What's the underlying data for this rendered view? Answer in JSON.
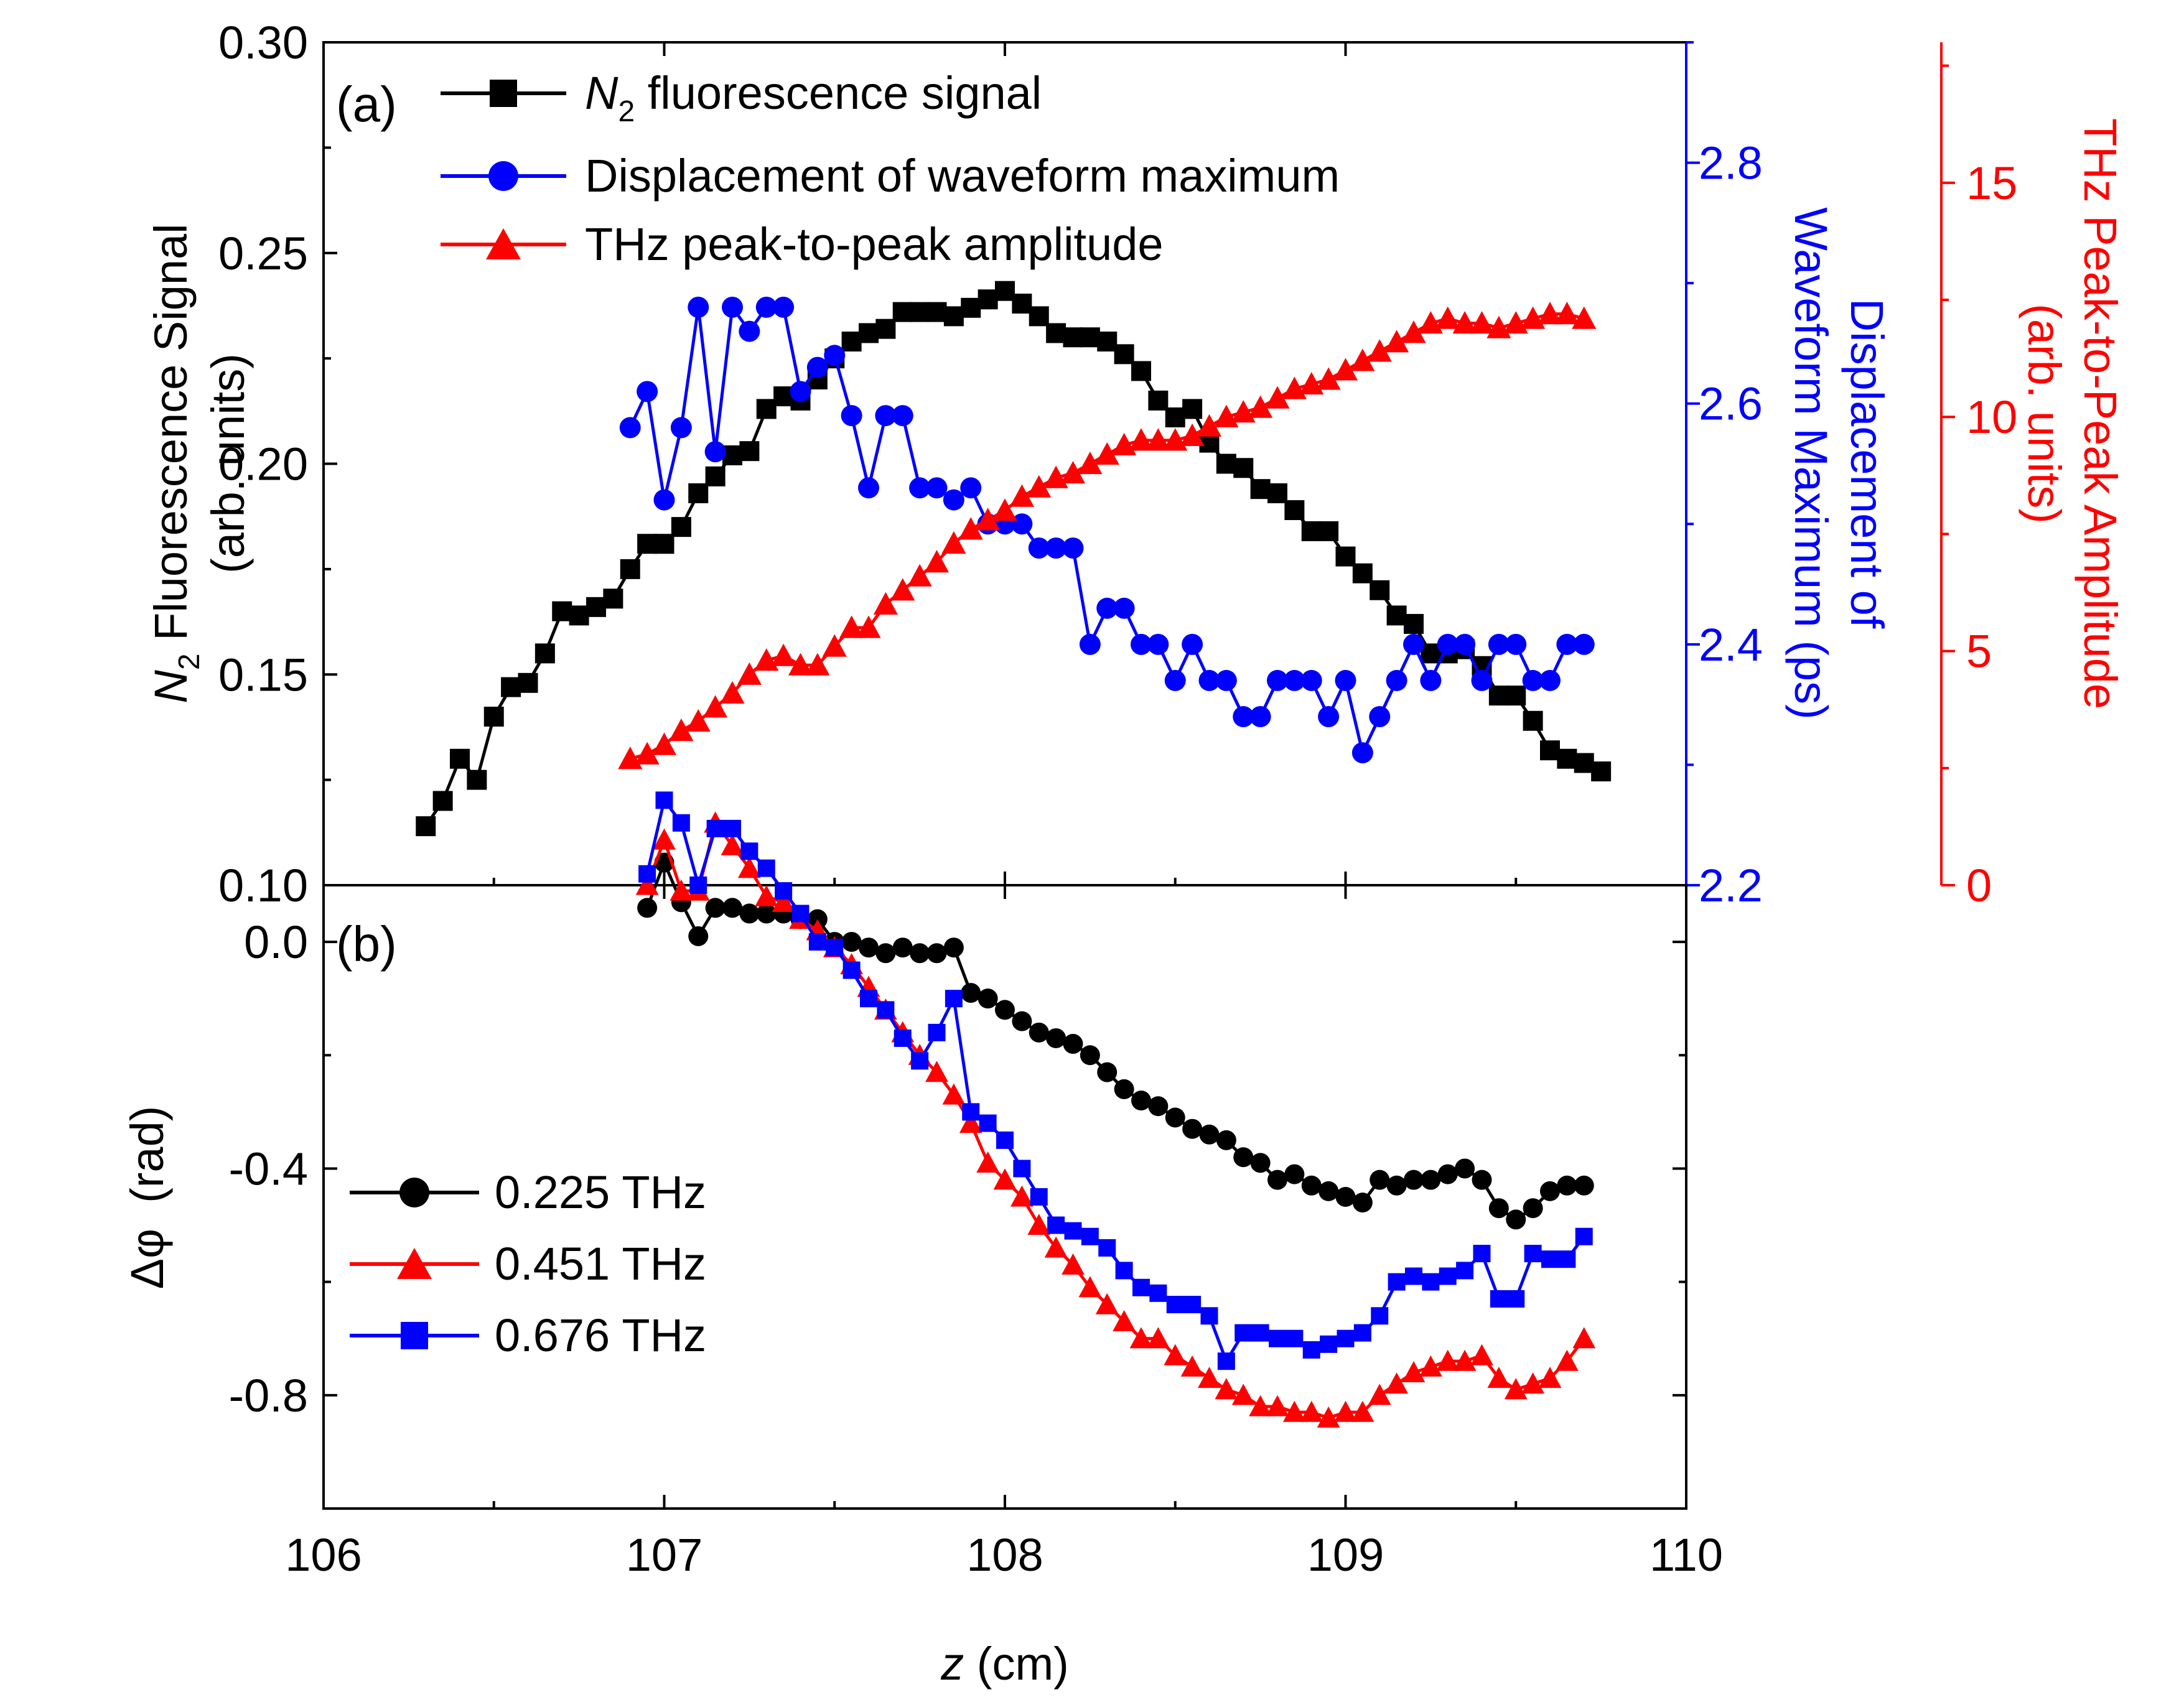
{
  "colors": {
    "black": "#000000",
    "blue": "#0000ff",
    "red": "#ff0000"
  },
  "chart_data": [
    {
      "type": "line",
      "panel_label": "(a)",
      "xlim": [
        106,
        110
      ],
      "ylabel_left": {
        "prefix": "N",
        "subscript": "2",
        "text": " Fluorescence Signal",
        "units": "(arb. units)"
      },
      "ylabel_mid": {
        "line1": "Displacement of",
        "line2": "Waveform Maximum (ps)"
      },
      "ylabel_right": {
        "line1": "THz Peak-to-Peak Amplitude",
        "line2": "(arb. units)"
      },
      "axes": {
        "left": {
          "ylim": [
            0.1,
            0.3
          ],
          "ticks": [
            0.1,
            0.15,
            0.2,
            0.25,
            0.3
          ],
          "labels": [
            "0.10",
            "0.15",
            "0.20",
            "0.25",
            "0.30"
          ],
          "color": "#000000"
        },
        "mid": {
          "ylim": [
            2.2,
            2.9
          ],
          "ticks": [
            2.2,
            2.4,
            2.6,
            2.8
          ],
          "labels": [
            "2.2",
            "2.4",
            "2.6",
            "2.8"
          ],
          "color": "#0000ff"
        },
        "right": {
          "ylim": [
            0,
            18
          ],
          "ticks": [
            0,
            5,
            10,
            15
          ],
          "labels": [
            "0",
            "5",
            "10",
            "15"
          ],
          "color": "#ff0000"
        }
      },
      "legend": [
        {
          "label_prefix": "N",
          "label_sub": "2",
          "label_rest": " fluorescence signal",
          "color": "#000000",
          "marker": "square"
        },
        {
          "label": "Displacement of waveform maximum",
          "color": "#0000ff",
          "marker": "circle"
        },
        {
          "label": "THz peak-to-peak amplitude",
          "color": "#ff0000",
          "marker": "triangle"
        }
      ],
      "series": [
        {
          "name": "N2 fluorescence signal",
          "axis": "left",
          "color": "#000000",
          "marker": "square",
          "x": [
            106.3,
            106.35,
            106.4,
            106.45,
            106.5,
            106.55,
            106.6,
            106.65,
            106.7,
            106.75,
            106.8,
            106.85,
            106.9,
            106.95,
            107.0,
            107.05,
            107.1,
            107.15,
            107.2,
            107.25,
            107.3,
            107.35,
            107.4,
            107.45,
            107.5,
            107.55,
            107.6,
            107.65,
            107.7,
            107.75,
            107.8,
            107.85,
            107.9,
            107.95,
            108.0,
            108.05,
            108.1,
            108.15,
            108.2,
            108.25,
            108.3,
            108.35,
            108.4,
            108.45,
            108.5,
            108.55,
            108.6,
            108.65,
            108.7,
            108.75,
            108.8,
            108.85,
            108.9,
            108.95,
            109.0,
            109.05,
            109.1,
            109.15,
            109.2,
            109.25,
            109.3,
            109.35,
            109.4,
            109.45,
            109.5,
            109.55,
            109.6,
            109.65,
            109.7,
            109.75
          ],
          "y": [
            0.114,
            0.12,
            0.13,
            0.125,
            0.14,
            0.147,
            0.148,
            0.155,
            0.165,
            0.164,
            0.166,
            0.168,
            0.175,
            0.181,
            0.181,
            0.185,
            0.193,
            0.197,
            0.202,
            0.203,
            0.213,
            0.216,
            0.215,
            0.22,
            0.225,
            0.229,
            0.231,
            0.232,
            0.236,
            0.236,
            0.236,
            0.235,
            0.237,
            0.239,
            0.241,
            0.238,
            0.235,
            0.231,
            0.23,
            0.23,
            0.229,
            0.226,
            0.222,
            0.215,
            0.211,
            0.213,
            0.205,
            0.2,
            0.199,
            0.194,
            0.193,
            0.189,
            0.184,
            0.184,
            0.178,
            0.174,
            0.17,
            0.164,
            0.162,
            0.155,
            0.155,
            0.156,
            0.152,
            0.145,
            0.145,
            0.139,
            0.132,
            0.13,
            0.129,
            0.127
          ]
        },
        {
          "name": "Displacement of waveform maximum",
          "axis": "mid",
          "color": "#0000ff",
          "marker": "circle",
          "x": [
            106.9,
            106.95,
            107.0,
            107.05,
            107.1,
            107.15,
            107.2,
            107.25,
            107.3,
            107.35,
            107.4,
            107.45,
            107.5,
            107.55,
            107.6,
            107.65,
            107.7,
            107.75,
            107.8,
            107.85,
            107.9,
            107.95,
            108.0,
            108.05,
            108.1,
            108.15,
            108.2,
            108.25,
            108.3,
            108.35,
            108.4,
            108.45,
            108.5,
            108.55,
            108.6,
            108.65,
            108.7,
            108.75,
            108.8,
            108.85,
            108.9,
            108.95,
            109.0,
            109.05,
            109.1,
            109.15,
            109.2,
            109.25,
            109.3,
            109.35,
            109.4,
            109.45,
            109.5,
            109.55,
            109.6,
            109.65,
            109.7
          ],
          "y": [
            2.58,
            2.61,
            2.52,
            2.58,
            2.68,
            2.56,
            2.68,
            2.66,
            2.68,
            2.68,
            2.61,
            2.63,
            2.64,
            2.59,
            2.53,
            2.59,
            2.59,
            2.53,
            2.53,
            2.52,
            2.53,
            2.5,
            2.5,
            2.5,
            2.48,
            2.48,
            2.48,
            2.4,
            2.43,
            2.43,
            2.4,
            2.4,
            2.37,
            2.4,
            2.37,
            2.37,
            2.34,
            2.34,
            2.37,
            2.37,
            2.37,
            2.34,
            2.37,
            2.31,
            2.34,
            2.37,
            2.4,
            2.37,
            2.4,
            2.4,
            2.37,
            2.4,
            2.4,
            2.37,
            2.37,
            2.4,
            2.4
          ]
        },
        {
          "name": "THz peak-to-peak amplitude",
          "axis": "right",
          "color": "#ff0000",
          "marker": "triangle",
          "x": [
            106.9,
            106.95,
            107.0,
            107.05,
            107.1,
            107.15,
            107.2,
            107.25,
            107.3,
            107.35,
            107.4,
            107.45,
            107.5,
            107.55,
            107.6,
            107.65,
            107.7,
            107.75,
            107.8,
            107.85,
            107.9,
            107.95,
            108.0,
            108.05,
            108.1,
            108.15,
            108.2,
            108.25,
            108.3,
            108.35,
            108.4,
            108.45,
            108.5,
            108.55,
            108.6,
            108.65,
            108.7,
            108.75,
            108.8,
            108.85,
            108.9,
            108.95,
            109.0,
            109.05,
            109.1,
            109.15,
            109.2,
            109.25,
            109.3,
            109.35,
            109.4,
            109.45,
            109.5,
            109.55,
            109.6,
            109.65,
            109.7
          ],
          "y": [
            2.7,
            2.8,
            3.0,
            3.3,
            3.5,
            3.8,
            4.1,
            4.5,
            4.8,
            4.9,
            4.7,
            4.7,
            5.1,
            5.5,
            5.5,
            6.0,
            6.3,
            6.6,
            6.9,
            7.3,
            7.6,
            7.8,
            8.0,
            8.3,
            8.5,
            8.7,
            8.8,
            9.0,
            9.2,
            9.4,
            9.5,
            9.5,
            9.5,
            9.6,
            9.8,
            10.0,
            10.1,
            10.2,
            10.4,
            10.6,
            10.7,
            10.8,
            11.0,
            11.2,
            11.4,
            11.6,
            11.8,
            12.0,
            12.1,
            12.0,
            12.0,
            11.9,
            12.0,
            12.1,
            12.2,
            12.2,
            12.1
          ]
        }
      ]
    },
    {
      "type": "line",
      "panel_label": "(b)",
      "xlabel": {
        "var": "z",
        "units": " (cm)"
      },
      "ylabel": "Δφ  (rad)",
      "xlim": [
        106,
        110
      ],
      "ylim": [
        -1.0,
        0.1
      ],
      "xticks": [
        106,
        107,
        108,
        109,
        110
      ],
      "xtick_labels": [
        "106",
        "107",
        "108",
        "109",
        "110"
      ],
      "yticks": [
        0.0,
        -0.4,
        -0.8
      ],
      "ytick_labels": [
        "0.0",
        "-0.4",
        "-0.8"
      ],
      "legend": [
        {
          "label": "0.225 THz",
          "color": "#000000",
          "marker": "circle"
        },
        {
          "label": "0.451 THz",
          "color": "#ff0000",
          "marker": "triangle"
        },
        {
          "label": "0.676 THz",
          "color": "#0000ff",
          "marker": "square"
        }
      ],
      "series": [
        {
          "name": "0.225 THz",
          "color": "#000000",
          "marker": "circle",
          "x": [
            106.95,
            107.0,
            107.05,
            107.1,
            107.15,
            107.2,
            107.25,
            107.3,
            107.35,
            107.4,
            107.45,
            107.5,
            107.55,
            107.6,
            107.65,
            107.7,
            107.75,
            107.8,
            107.85,
            107.9,
            107.95,
            108.0,
            108.05,
            108.1,
            108.15,
            108.2,
            108.25,
            108.3,
            108.35,
            108.4,
            108.45,
            108.5,
            108.55,
            108.6,
            108.65,
            108.7,
            108.75,
            108.8,
            108.85,
            108.9,
            108.95,
            109.0,
            109.05,
            109.1,
            109.15,
            109.2,
            109.25,
            109.3,
            109.35,
            109.4,
            109.45,
            109.5,
            109.55,
            109.6,
            109.65,
            109.7
          ],
          "y": [
            0.06,
            0.14,
            0.07,
            0.01,
            0.06,
            0.06,
            0.05,
            0.05,
            0.05,
            0.04,
            0.04,
            0.0,
            0.0,
            -0.01,
            -0.02,
            -0.01,
            -0.02,
            -0.02,
            -0.01,
            -0.09,
            -0.1,
            -0.12,
            -0.14,
            -0.16,
            -0.17,
            -0.18,
            -0.2,
            -0.23,
            -0.26,
            -0.28,
            -0.29,
            -0.31,
            -0.33,
            -0.34,
            -0.35,
            -0.38,
            -0.39,
            -0.42,
            -0.41,
            -0.43,
            -0.44,
            -0.45,
            -0.46,
            -0.42,
            -0.43,
            -0.42,
            -0.42,
            -0.41,
            -0.4,
            -0.42,
            -0.47,
            -0.49,
            -0.47,
            -0.44,
            -0.43,
            -0.43
          ]
        },
        {
          "name": "0.451 THz",
          "color": "#ff0000",
          "marker": "triangle",
          "x": [
            106.95,
            107.0,
            107.05,
            107.1,
            107.15,
            107.2,
            107.25,
            107.3,
            107.35,
            107.4,
            107.45,
            107.5,
            107.55,
            107.6,
            107.65,
            107.7,
            107.75,
            107.8,
            107.85,
            107.9,
            107.95,
            108.0,
            108.05,
            108.1,
            108.15,
            108.2,
            108.25,
            108.3,
            108.35,
            108.4,
            108.45,
            108.5,
            108.55,
            108.6,
            108.65,
            108.7,
            108.75,
            108.8,
            108.85,
            108.9,
            108.95,
            109.0,
            109.05,
            109.1,
            109.15,
            109.2,
            109.25,
            109.3,
            109.35,
            109.4,
            109.45,
            109.5,
            109.55,
            109.6,
            109.65,
            109.7
          ],
          "y": [
            0.1,
            0.18,
            0.09,
            0.09,
            0.21,
            0.17,
            0.13,
            0.08,
            0.07,
            0.04,
            0.02,
            -0.01,
            -0.04,
            -0.08,
            -0.12,
            -0.16,
            -0.2,
            -0.23,
            -0.27,
            -0.32,
            -0.39,
            -0.42,
            -0.45,
            -0.5,
            -0.54,
            -0.57,
            -0.61,
            -0.64,
            -0.67,
            -0.7,
            -0.7,
            -0.73,
            -0.75,
            -0.77,
            -0.79,
            -0.8,
            -0.82,
            -0.82,
            -0.83,
            -0.83,
            -0.84,
            -0.83,
            -0.83,
            -0.8,
            -0.78,
            -0.76,
            -0.75,
            -0.74,
            -0.74,
            -0.73,
            -0.77,
            -0.79,
            -0.78,
            -0.77,
            -0.74,
            -0.7
          ]
        },
        {
          "name": "0.676 THz",
          "color": "#0000ff",
          "marker": "square",
          "x": [
            106.95,
            107.0,
            107.05,
            107.1,
            107.15,
            107.2,
            107.25,
            107.3,
            107.35,
            107.4,
            107.45,
            107.5,
            107.55,
            107.6,
            107.65,
            107.7,
            107.75,
            107.8,
            107.85,
            107.9,
            107.95,
            108.0,
            108.05,
            108.1,
            108.15,
            108.2,
            108.25,
            108.3,
            108.35,
            108.4,
            108.45,
            108.5,
            108.55,
            108.6,
            108.65,
            108.7,
            108.75,
            108.8,
            108.85,
            108.9,
            108.95,
            109.0,
            109.05,
            109.1,
            109.15,
            109.2,
            109.25,
            109.3,
            109.35,
            109.4,
            109.45,
            109.5,
            109.55,
            109.6,
            109.65,
            109.7
          ],
          "y": [
            0.12,
            0.25,
            0.21,
            0.1,
            0.2,
            0.2,
            0.16,
            0.13,
            0.09,
            0.05,
            0.0,
            -0.01,
            -0.05,
            -0.1,
            -0.12,
            -0.17,
            -0.21,
            -0.16,
            -0.1,
            -0.3,
            -0.32,
            -0.35,
            -0.4,
            -0.45,
            -0.5,
            -0.51,
            -0.52,
            -0.54,
            -0.58,
            -0.61,
            -0.62,
            -0.64,
            -0.64,
            -0.66,
            -0.74,
            -0.69,
            -0.69,
            -0.7,
            -0.7,
            -0.72,
            -0.71,
            -0.7,
            -0.69,
            -0.66,
            -0.6,
            -0.59,
            -0.6,
            -0.59,
            -0.58,
            -0.55,
            -0.63,
            -0.63,
            -0.55,
            -0.56,
            -0.56,
            -0.52
          ]
        }
      ]
    }
  ]
}
